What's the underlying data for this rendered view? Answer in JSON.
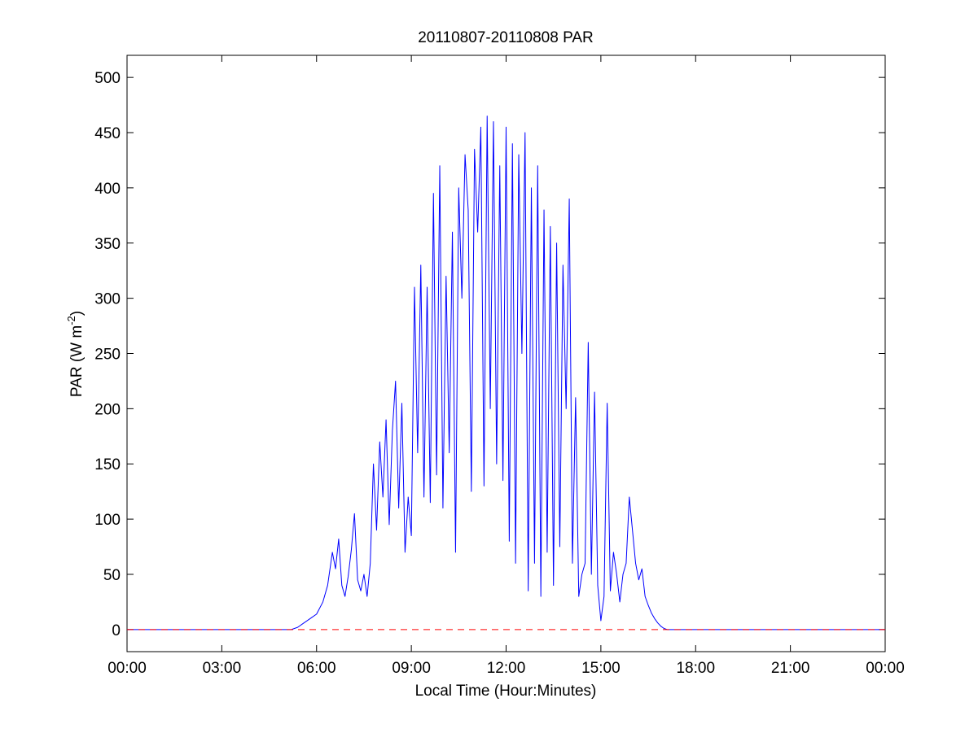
{
  "chart_data": {
    "type": "line",
    "title": "20110807-20110808 PAR",
    "xlabel": "Local Time (Hour:Minutes)",
    "ylabel": {
      "base": "PAR (W m",
      "superscript": "-2",
      "suffix": ")"
    },
    "xlim": [
      0,
      24
    ],
    "ylim": [
      -20,
      520
    ],
    "x_ticks": [
      0,
      3,
      6,
      9,
      12,
      15,
      18,
      21,
      24
    ],
    "x_tick_labels": [
      "00:00",
      "03:00",
      "06:00",
      "09:00",
      "12:00",
      "15:00",
      "18:00",
      "21:00",
      "00:00"
    ],
    "y_ticks": [
      0,
      50,
      100,
      150,
      200,
      250,
      300,
      350,
      400,
      450,
      500
    ],
    "y_tick_labels": [
      "0",
      "50",
      "100",
      "150",
      "200",
      "250",
      "300",
      "350",
      "400",
      "450",
      "500"
    ],
    "grid": false,
    "series": [
      {
        "color": "#0000ff",
        "style": "solid",
        "x": [
          0,
          5.2,
          5.4,
          5.6,
          5.8,
          6.0,
          6.2,
          6.35,
          6.5,
          6.6,
          6.7,
          6.8,
          6.9,
          7.0,
          7.1,
          7.2,
          7.3,
          7.4,
          7.5,
          7.6,
          7.7,
          7.8,
          7.9,
          8.0,
          8.1,
          8.2,
          8.3,
          8.4,
          8.5,
          8.6,
          8.7,
          8.8,
          8.9,
          9.0,
          9.1,
          9.2,
          9.3,
          9.4,
          9.5,
          9.6,
          9.7,
          9.8,
          9.9,
          10.0,
          10.1,
          10.2,
          10.3,
          10.4,
          10.5,
          10.6,
          10.7,
          10.8,
          10.9,
          11.0,
          11.1,
          11.2,
          11.3,
          11.4,
          11.5,
          11.6,
          11.7,
          11.8,
          11.9,
          12.0,
          12.1,
          12.2,
          12.3,
          12.4,
          12.5,
          12.6,
          12.7,
          12.8,
          12.9,
          13.0,
          13.1,
          13.2,
          13.3,
          13.4,
          13.5,
          13.6,
          13.7,
          13.8,
          13.9,
          14.0,
          14.1,
          14.2,
          14.3,
          14.4,
          14.5,
          14.6,
          14.7,
          14.8,
          14.9,
          15.0,
          15.1,
          15.2,
          15.3,
          15.4,
          15.5,
          15.6,
          15.7,
          15.8,
          15.9,
          16.0,
          16.1,
          16.2,
          16.3,
          16.4,
          16.5,
          16.6,
          16.7,
          16.8,
          16.9,
          17.0,
          17.1,
          17.2,
          17.3,
          17.4,
          17.5,
          17.6,
          17.7,
          17.8,
          17.9,
          18.0,
          18.2,
          18.4,
          18.6,
          18.8,
          19.0,
          19.2,
          24
        ],
        "y": [
          0,
          0,
          2,
          6,
          10,
          14,
          25,
          40,
          70,
          55,
          82,
          40,
          30,
          48,
          72,
          105,
          45,
          35,
          50,
          30,
          60,
          150,
          90,
          170,
          120,
          190,
          95,
          180,
          225,
          110,
          205,
          70,
          120,
          85,
          310,
          160,
          330,
          120,
          310,
          115,
          395,
          140,
          420,
          110,
          320,
          160,
          360,
          70,
          400,
          300,
          430,
          380,
          125,
          435,
          360,
          455,
          130,
          465,
          200,
          460,
          150,
          420,
          135,
          455,
          80,
          440,
          60,
          430,
          250,
          450,
          35,
          400,
          60,
          420,
          30,
          380,
          70,
          365,
          40,
          350,
          75,
          330,
          200,
          390,
          60,
          210,
          30,
          50,
          60,
          260,
          50,
          215,
          40,
          8,
          30,
          205,
          35,
          70,
          50,
          25,
          50,
          60,
          120,
          90,
          60,
          45,
          55,
          30,
          22,
          15,
          10,
          6,
          3,
          1,
          0,
          0,
          0,
          0,
          0,
          0,
          0,
          0,
          0,
          0,
          0,
          0,
          0,
          0,
          0,
          0,
          0
        ]
      },
      {
        "color": "#ff0000",
        "style": "dashed",
        "x": [
          0,
          24
        ],
        "y": [
          0,
          0
        ]
      }
    ]
  }
}
